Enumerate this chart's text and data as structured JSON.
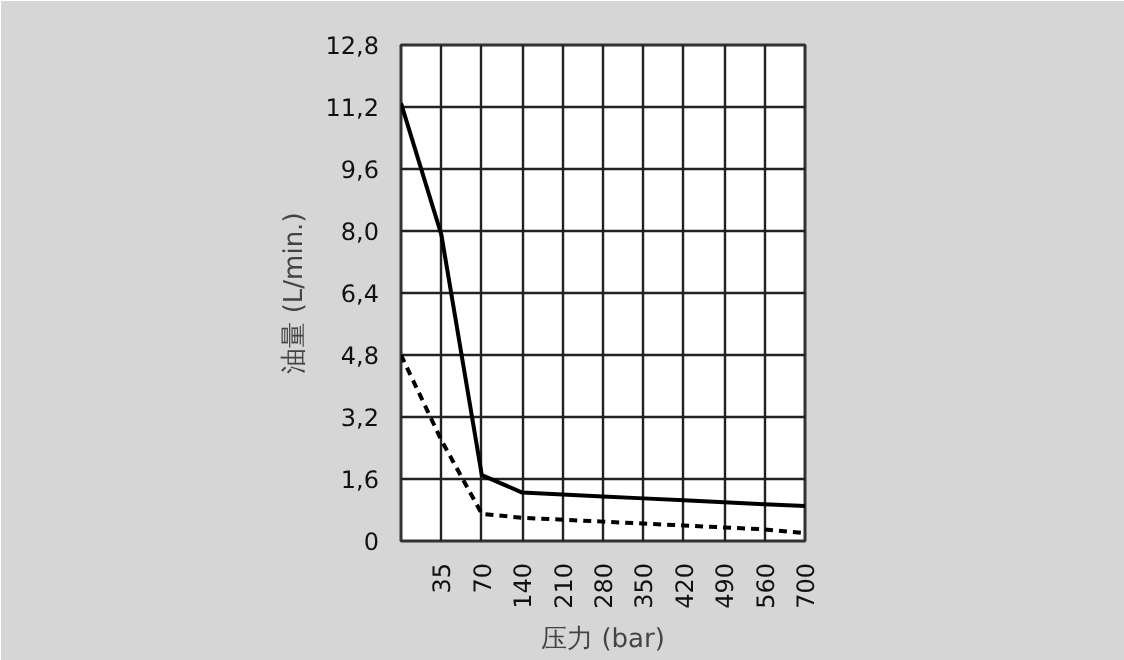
{
  "chart_data": {
    "type": "line",
    "xlabel": "压力 (bar)",
    "ylabel": "油量 (L/min.)",
    "categories": [
      null,
      "35",
      "70",
      "140",
      "210",
      "280",
      "350",
      "420",
      "490",
      "560",
      "700"
    ],
    "series": [
      {
        "color": "#000000",
        "line_style": "solid",
        "values": [
          11.3,
          7.9,
          1.7,
          1.25,
          1.2,
          1.15,
          1.1,
          1.05,
          1.0,
          0.95,
          0.9
        ]
      },
      {
        "color": "#000000",
        "line_style": "dashed",
        "values": [
          4.8,
          2.6,
          0.7,
          0.6,
          0.55,
          0.5,
          0.45,
          0.4,
          0.35,
          0.3,
          0.2
        ]
      }
    ],
    "ylim": [
      0,
      12.8
    ],
    "yticks": [
      0,
      {
        "value": 1.6,
        "label": "1,6"
      },
      {
        "value": 3.2,
        "label": "3,2"
      },
      {
        "value": 4.8,
        "label": "4,8"
      },
      {
        "value": 6.4,
        "label": "6,4"
      },
      {
        "value": 8.0,
        "label": "8,0"
      },
      {
        "value": 9.6,
        "label": "9,6"
      },
      {
        "value": 11.2,
        "label": "11,2"
      },
      {
        "value": 12.8,
        "label": "12,8"
      }
    ],
    "grid": true,
    "marker": "none"
  }
}
